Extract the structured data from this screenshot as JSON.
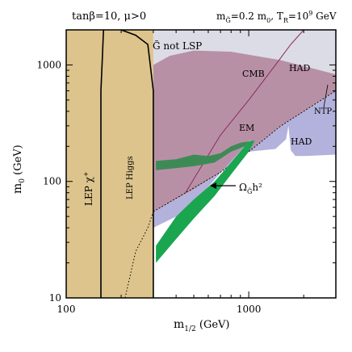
{
  "chart_data": {
    "type": "area",
    "title_left": "tanβ=10, μ>0",
    "title_right": "m",
    "title_right_sub": "G̃",
    "title_right_rest": "=0.2 m",
    "title_right_sub2": "0",
    "title_right_tail": ", T",
    "title_right_sub3": "R",
    "title_right_end": "=10",
    "title_right_sup": "9",
    "title_right_unit": " GeV",
    "xlabel": "m",
    "xlabel_sub": "1/2",
    "xlabel_unit": " (GeV)",
    "ylabel": "m",
    "ylabel_sub": "0",
    "ylabel_unit": " (GeV)",
    "xscale": "log",
    "yscale": "log",
    "xlim": [
      100,
      3000
    ],
    "ylim": [
      10,
      2000
    ],
    "x_ticks": [
      {
        "value": 100,
        "label": "100"
      },
      {
        "value": 1000,
        "label": "1000"
      }
    ],
    "y_ticks": [
      {
        "value": 10,
        "label": "10"
      },
      {
        "value": 100,
        "label": "100"
      },
      {
        "value": 1000,
        "label": "1000"
      }
    ],
    "regions": [
      {
        "name": "gravitino-not-lsp",
        "color": "#dcdce6",
        "points": [
          [
            300,
            2000
          ],
          [
            3000,
            2000
          ],
          [
            3000,
            830
          ],
          [
            1500,
            1100
          ],
          [
            800,
            1300
          ],
          [
            500,
            1330
          ],
          [
            370,
            1200
          ],
          [
            300,
            1000
          ]
        ]
      },
      {
        "name": "cmb-em-excluded",
        "color": "#b890a6",
        "points": [
          [
            300,
            1000
          ],
          [
            370,
            1200
          ],
          [
            500,
            1330
          ],
          [
            800,
            1300
          ],
          [
            1500,
            1100
          ],
          [
            3000,
            830
          ],
          [
            3000,
            600
          ],
          [
            1500,
            300
          ],
          [
            1000,
            180
          ],
          [
            700,
            120
          ],
          [
            500,
            85
          ],
          [
            300,
            55
          ]
        ]
      },
      {
        "name": "had-excluded",
        "color": "#b3b2dc",
        "points": [
          [
            1500,
            300
          ],
          [
            3000,
            600
          ],
          [
            3000,
            170
          ],
          [
            2000,
            165
          ],
          [
            1800,
            165
          ],
          [
            1700,
            185
          ],
          [
            1650,
            300
          ],
          [
            1600,
            230
          ],
          [
            1400,
            190
          ],
          [
            1000,
            180
          ]
        ]
      },
      {
        "name": "had-lower-band",
        "color": "#b3b2dc",
        "points": [
          [
            300,
            55
          ],
          [
            500,
            85
          ],
          [
            700,
            120
          ],
          [
            1000,
            180
          ],
          [
            1020,
            230
          ],
          [
            800,
            150
          ],
          [
            600,
            90
          ],
          [
            400,
            50
          ],
          [
            300,
            40
          ]
        ]
      },
      {
        "name": "lep-excluded",
        "color": "#ddc48c",
        "points": [
          [
            100,
            2000
          ],
          [
            300,
            2000
          ],
          [
            300,
            10
          ],
          [
            100,
            10
          ]
        ]
      }
    ],
    "series": [
      {
        "name": "Ω h² band upper",
        "color": "#3e8a57",
        "points": [
          [
            310,
            150
          ],
          [
            400,
            155
          ],
          [
            500,
            170
          ],
          [
            600,
            165
          ],
          [
            700,
            175
          ],
          [
            800,
            200
          ],
          [
            900,
            215
          ],
          [
            1000,
            220
          ],
          [
            950,
            200
          ],
          [
            800,
            180
          ],
          [
            650,
            145
          ],
          [
            500,
            135
          ],
          [
            400,
            130
          ],
          [
            310,
            125
          ]
        ]
      },
      {
        "name": "Ω h² band lower",
        "color": "#1aa54f",
        "points": [
          [
            310,
            20
          ],
          [
            400,
            32
          ],
          [
            500,
            48
          ],
          [
            650,
            75
          ],
          [
            800,
            115
          ],
          [
            1000,
            180
          ],
          [
            1080,
            225
          ],
          [
            1000,
            220
          ],
          [
            800,
            145
          ],
          [
            650,
            100
          ],
          [
            500,
            70
          ],
          [
            400,
            50
          ],
          [
            310,
            28
          ]
        ]
      }
    ],
    "lines": [
      {
        "name": "lep-chargino-boundary",
        "style": "solid",
        "points": [
          [
            155,
            10
          ],
          [
            155,
            600
          ],
          [
            158,
            1200
          ],
          [
            160,
            2000
          ]
        ]
      },
      {
        "name": "lep-higgs-boundary",
        "style": "solid",
        "points": [
          [
            300,
            10
          ],
          [
            300,
            600
          ],
          [
            280,
            1500
          ],
          [
            240,
            1800
          ],
          [
            200,
            2000
          ]
        ]
      },
      {
        "name": "lep-higgs-dotted",
        "style": "dotted",
        "points": [
          [
            210,
            10
          ],
          [
            240,
            25
          ],
          [
            280,
            40
          ],
          [
            300,
            55
          ]
        ]
      },
      {
        "name": "cmb-line",
        "style": "solid-thin",
        "points": [
          [
            450,
            80
          ],
          [
            700,
            250
          ],
          [
            1000,
            500
          ],
          [
            1400,
            1000
          ],
          [
            1700,
            1500
          ],
          [
            2000,
            2000
          ]
        ]
      },
      {
        "name": "had-dashed",
        "style": "dashed",
        "points": [
          [
            300,
            55
          ],
          [
            700,
            120
          ],
          [
            1000,
            180
          ],
          [
            1500,
            300
          ],
          [
            3000,
            600
          ]
        ]
      }
    ],
    "annotations": [
      {
        "name": "label-g-not-lsp",
        "text": "G̃ not LSP"
      },
      {
        "name": "label-cmb",
        "text": "CMB"
      },
      {
        "name": "label-em",
        "text": "EM"
      },
      {
        "name": "label-had-1",
        "text": "HAD"
      },
      {
        "name": "label-had-2",
        "text": "HAD"
      },
      {
        "name": "label-ntp",
        "text": "NTP"
      },
      {
        "name": "label-lep-chi",
        "text": "LEP χ"
      },
      {
        "name": "label-lep-chi-sup",
        "text": "+"
      },
      {
        "name": "label-lep-higgs",
        "text": "LEP Higgs"
      },
      {
        "name": "label-omega",
        "text": "Ω"
      },
      {
        "name": "label-omega-sub",
        "text": "G̃"
      },
      {
        "name": "label-omega-rest",
        "text": "h²"
      }
    ]
  }
}
